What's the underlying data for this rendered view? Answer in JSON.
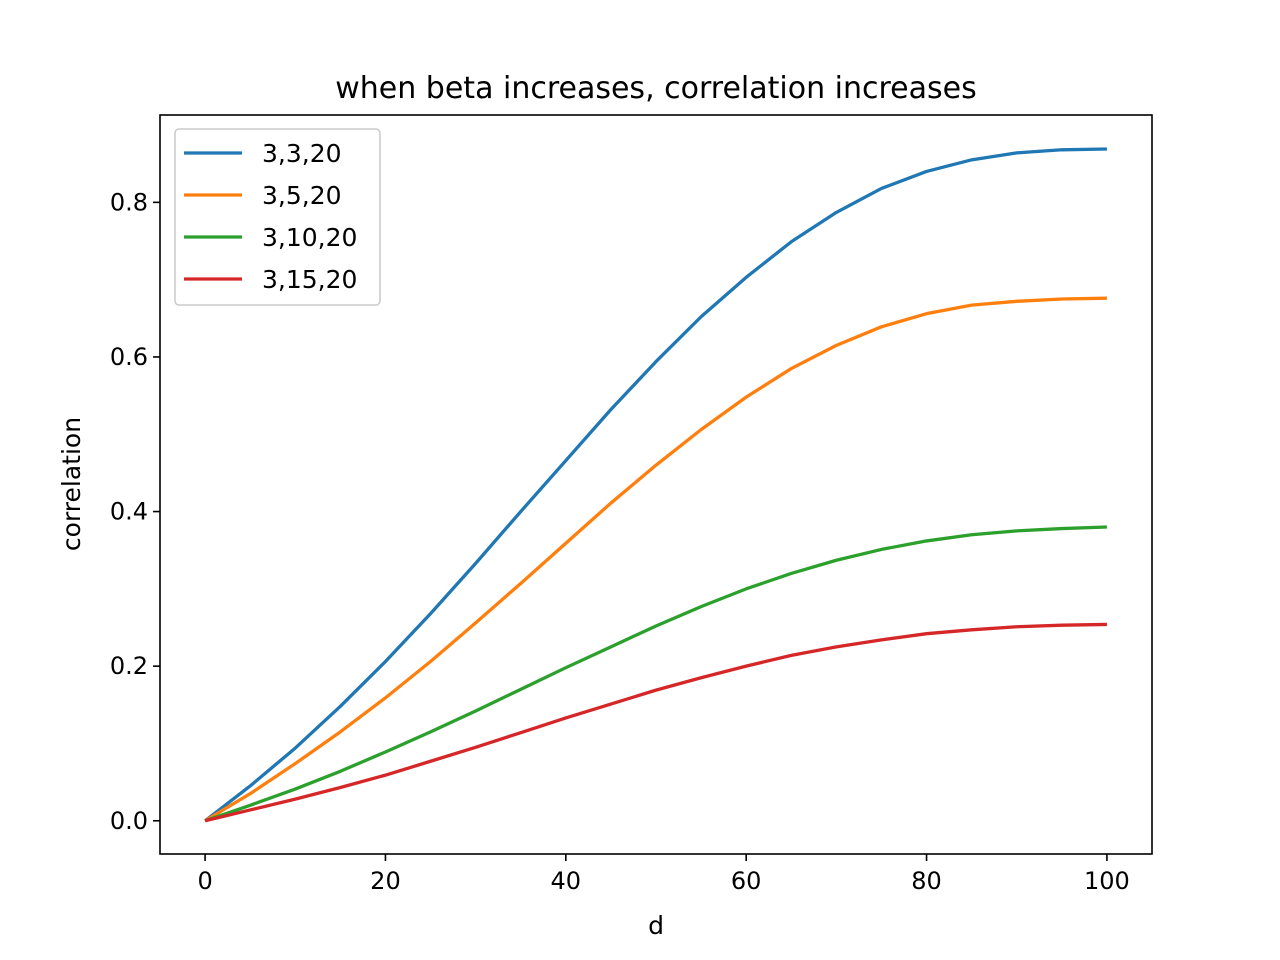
{
  "chart_data": {
    "type": "line",
    "title": "when beta increases, correlation increases",
    "xlabel": "d",
    "ylabel": "correlation",
    "xlim": [
      -5,
      105
    ],
    "ylim": [
      -0.043,
      0.913
    ],
    "x_ticks": [
      0,
      20,
      40,
      60,
      80,
      100
    ],
    "y_ticks": [
      0.0,
      0.2,
      0.4,
      0.6,
      0.8
    ],
    "x_tick_labels": [
      "0",
      "20",
      "40",
      "60",
      "80",
      "100"
    ],
    "y_tick_labels": [
      "0.0",
      "0.2",
      "0.4",
      "0.6",
      "0.8"
    ],
    "grid": false,
    "legend_position": "upper left",
    "x": [
      0,
      5,
      10,
      15,
      20,
      25,
      30,
      35,
      40,
      45,
      50,
      55,
      60,
      65,
      70,
      75,
      80,
      85,
      90,
      95,
      100
    ],
    "series": [
      {
        "name": "3,3,20",
        "color": "#1f77b4",
        "values": [
          0.0,
          0.045,
          0.094,
          0.148,
          0.206,
          0.268,
          0.333,
          0.4,
          0.466,
          0.532,
          0.594,
          0.652,
          0.703,
          0.749,
          0.787,
          0.818,
          0.84,
          0.855,
          0.864,
          0.868,
          0.869
        ]
      },
      {
        "name": "3,5,20",
        "color": "#ff7f0e",
        "values": [
          0.0,
          0.035,
          0.074,
          0.115,
          0.159,
          0.206,
          0.256,
          0.307,
          0.359,
          0.411,
          0.46,
          0.506,
          0.548,
          0.585,
          0.615,
          0.639,
          0.656,
          0.667,
          0.672,
          0.675,
          0.676
        ]
      },
      {
        "name": "3,10,20",
        "color": "#2ca02c",
        "values": [
          0.0,
          0.02,
          0.041,
          0.064,
          0.089,
          0.115,
          0.142,
          0.17,
          0.198,
          0.225,
          0.252,
          0.277,
          0.3,
          0.32,
          0.337,
          0.351,
          0.362,
          0.37,
          0.375,
          0.378,
          0.38
        ]
      },
      {
        "name": "3,15,20",
        "color": "#d62728",
        "values": [
          0.0,
          0.014,
          0.028,
          0.043,
          0.059,
          0.077,
          0.095,
          0.114,
          0.133,
          0.151,
          0.169,
          0.185,
          0.2,
          0.214,
          0.225,
          0.234,
          0.242,
          0.247,
          0.251,
          0.253,
          0.254
        ]
      }
    ]
  }
}
